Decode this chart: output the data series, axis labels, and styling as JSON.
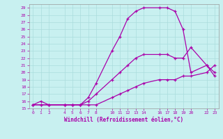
{
  "xlabel": "Windchill (Refroidissement éolien,°C)",
  "bg_color": "#c8f0f0",
  "line_color": "#aa00aa",
  "grid_color": "#aadddd",
  "xlim": [
    -0.5,
    23.5
  ],
  "ylim": [
    15,
    29.5
  ],
  "xticks": [
    0,
    1,
    2,
    4,
    5,
    6,
    7,
    8,
    10,
    11,
    12,
    13,
    14,
    16,
    17,
    18,
    19,
    20,
    22,
    23
  ],
  "yticks": [
    15,
    16,
    17,
    18,
    19,
    20,
    21,
    22,
    23,
    24,
    25,
    26,
    27,
    28,
    29
  ],
  "line1_x": [
    0,
    1,
    2,
    4,
    5,
    6,
    7,
    8,
    10,
    11,
    12,
    13,
    14,
    16,
    17,
    18,
    19,
    20,
    22,
    23
  ],
  "line1_y": [
    15.5,
    16.0,
    15.5,
    15.5,
    15.5,
    15.5,
    16.5,
    18.5,
    23,
    25,
    27.5,
    28.5,
    29,
    29,
    29,
    28.5,
    26,
    20,
    21,
    20
  ],
  "line2_x": [
    0,
    1,
    2,
    4,
    5,
    6,
    7,
    8,
    10,
    11,
    12,
    13,
    14,
    16,
    17,
    18,
    19,
    20,
    22,
    23
  ],
  "line2_y": [
    15.5,
    15.5,
    15.5,
    15.5,
    15.5,
    15.5,
    16.0,
    17.0,
    19,
    20,
    21,
    22,
    22.5,
    22.5,
    22.5,
    22,
    22,
    23.5,
    21,
    19.5
  ],
  "line3_x": [
    0,
    1,
    2,
    4,
    5,
    6,
    7,
    8,
    10,
    11,
    12,
    13,
    14,
    16,
    17,
    18,
    19,
    20,
    22,
    23
  ],
  "line3_y": [
    15.5,
    15.5,
    15.5,
    15.5,
    15.5,
    15.5,
    15.5,
    15.5,
    16.5,
    17,
    17.5,
    18,
    18.5,
    19,
    19,
    19,
    19.5,
    19.5,
    20,
    21
  ]
}
